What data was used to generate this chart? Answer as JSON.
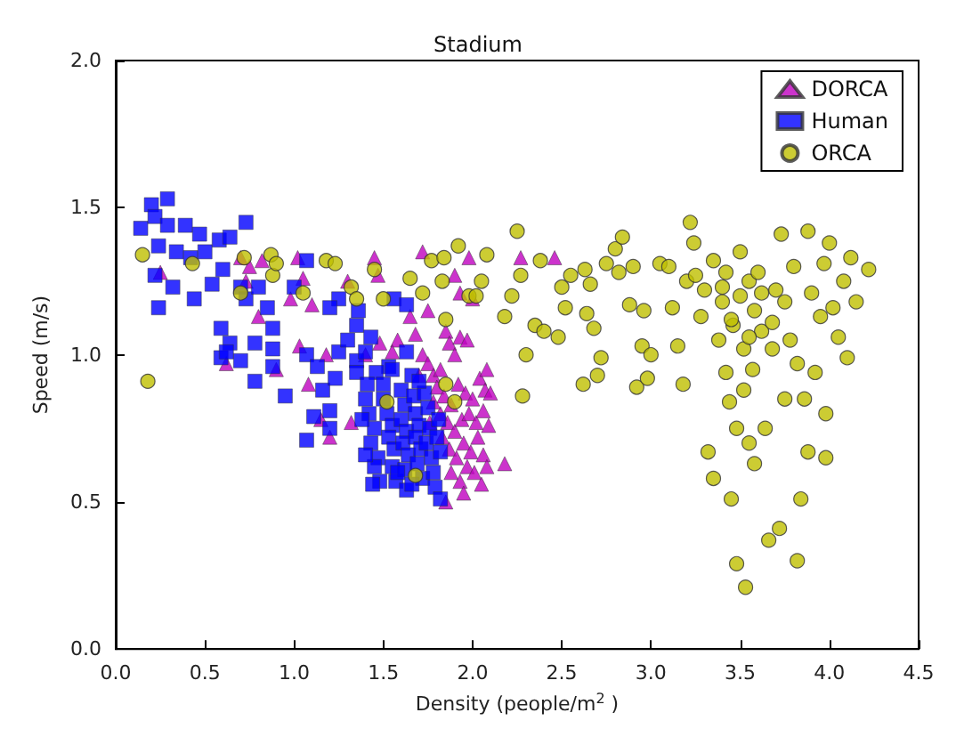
{
  "chart_data": {
    "type": "scatter",
    "title": "Stadium",
    "xlabel": "Density (people/m$^{2}$ )",
    "ylabel": "Speed (m/s)",
    "xlim": [
      0,
      4.5
    ],
    "ylim": [
      0,
      2
    ],
    "xticks": [
      {
        "value": 0,
        "label": "0.0"
      },
      {
        "value": 0.5,
        "label": "0.5"
      },
      {
        "value": 1,
        "label": "1.0"
      },
      {
        "value": 1.5,
        "label": "1.5"
      },
      {
        "value": 2,
        "label": "2.0"
      },
      {
        "value": 2.5,
        "label": "2.5"
      },
      {
        "value": 3,
        "label": "3.0"
      },
      {
        "value": 3.5,
        "label": "3.5"
      },
      {
        "value": 4,
        "label": "4.0"
      },
      {
        "value": 4.5,
        "label": "4.5"
      }
    ],
    "yticks": [
      {
        "value": 0,
        "label": "0.0"
      },
      {
        "value": 0.5,
        "label": "0.5"
      },
      {
        "value": 1,
        "label": "1.0"
      },
      {
        "value": 1.5,
        "label": "1.5"
      },
      {
        "value": 2,
        "label": "2.0"
      }
    ],
    "grid": false,
    "legend": "top right",
    "series": [
      {
        "name": "DORCA",
        "color": "#bf00bf",
        "marker": "triangle",
        "x": [
          0.25,
          0.62,
          0.7,
          0.75,
          0.73,
          0.8,
          0.82,
          0.9,
          0.98,
          1.02,
          1.05,
          1.03,
          1.08,
          1.1,
          1.15,
          1.18,
          1.2,
          1.32,
          1.3,
          1.4,
          1.45,
          1.47,
          1.58,
          1.65,
          1.72,
          1.75,
          1.9,
          1.93,
          1.98,
          2.0,
          2.27,
          2.46,
          1.48,
          1.55,
          1.68,
          1.72,
          1.75,
          1.7,
          1.78,
          1.82,
          1.85,
          1.87,
          1.9,
          1.93,
          1.97,
          1.8,
          1.84,
          1.88,
          1.92,
          1.96,
          2.0,
          2.04,
          2.07,
          1.82,
          1.86,
          1.9,
          1.94,
          1.98,
          2.02,
          2.06,
          2.09,
          1.83,
          1.87,
          1.91,
          1.95,
          1.99,
          2.03,
          2.06,
          2.08,
          1.88,
          1.93,
          1.97,
          2.01,
          2.05,
          1.95,
          1.85,
          2.18,
          2.1,
          2.08,
          1.78,
          1.76
        ],
        "values": [
          1.28,
          0.97,
          1.33,
          1.3,
          1.25,
          1.13,
          1.32,
          0.95,
          1.19,
          1.33,
          1.26,
          1.03,
          0.9,
          1.17,
          0.78,
          1.0,
          0.72,
          0.77,
          1.25,
          1.0,
          1.33,
          1.27,
          1.05,
          1.13,
          1.35,
          1.15,
          1.27,
          1.21,
          1.33,
          1.19,
          1.33,
          1.33,
          1.04,
          1.01,
          1.07,
          1.0,
          0.97,
          0.93,
          0.93,
          0.95,
          1.08,
          1.04,
          1.0,
          1.06,
          1.05,
          0.89,
          0.86,
          0.83,
          0.9,
          0.87,
          0.85,
          0.92,
          0.88,
          0.8,
          0.77,
          0.74,
          0.78,
          0.8,
          0.77,
          0.81,
          0.76,
          0.72,
          0.68,
          0.65,
          0.7,
          0.67,
          0.72,
          0.66,
          0.62,
          0.6,
          0.57,
          0.62,
          0.6,
          0.56,
          0.53,
          0.5,
          0.63,
          0.87,
          0.95,
          0.84,
          0.77
        ]
      },
      {
        "name": "Human",
        "color": "#0000ff",
        "marker": "square",
        "x": [
          0.14,
          0.2,
          0.29,
          0.22,
          0.24,
          0.29,
          0.39,
          0.47,
          0.58,
          0.64,
          0.73,
          0.34,
          0.42,
          0.5,
          0.22,
          0.32,
          0.44,
          0.24,
          0.54,
          0.6,
          0.7,
          0.73,
          0.8,
          0.85,
          0.88,
          0.59,
          0.64,
          0.59,
          0.7,
          0.78,
          0.88,
          0.88,
          0.78,
          0.62,
          1.07,
          1.0,
          0.95,
          1.07,
          1.07,
          1.13,
          1.16,
          1.11,
          1.2,
          1.2,
          1.23,
          1.25,
          1.25,
          1.2,
          1.3,
          1.35,
          1.36,
          1.43,
          1.35,
          1.35,
          1.4,
          1.56,
          1.63,
          1.63,
          1.53,
          1.46,
          1.41,
          1.4,
          1.42,
          1.45,
          1.43,
          1.47,
          1.45,
          1.48,
          1.5,
          1.52,
          1.55,
          1.53,
          1.56,
          1.55,
          1.57,
          1.6,
          1.62,
          1.6,
          1.63,
          1.61,
          1.64,
          1.62,
          1.63,
          1.67,
          1.68,
          1.7,
          1.68,
          1.71,
          1.69,
          1.72,
          1.73,
          1.75,
          1.76,
          1.74,
          1.77,
          1.78,
          1.79,
          1.82,
          1.8,
          1.82,
          1.81,
          1.66,
          1.55,
          1.5,
          1.38,
          1.4,
          1.44,
          1.7,
          1.58,
          1.66
        ],
        "values": [
          1.43,
          1.51,
          1.53,
          1.47,
          1.37,
          1.44,
          1.44,
          1.41,
          1.39,
          1.4,
          1.45,
          1.35,
          1.33,
          1.35,
          1.27,
          1.23,
          1.19,
          1.16,
          1.24,
          1.29,
          1.23,
          1.19,
          1.23,
          1.16,
          1.09,
          1.09,
          1.04,
          0.99,
          0.98,
          1.04,
          1.02,
          0.96,
          0.91,
          1.01,
          1.32,
          1.23,
          0.86,
          0.71,
          1.0,
          0.96,
          0.88,
          0.79,
          0.75,
          0.81,
          0.92,
          1.01,
          1.19,
          1.16,
          1.05,
          1.1,
          1.15,
          1.06,
          0.98,
          0.94,
          1.01,
          1.19,
          1.17,
          1.01,
          0.96,
          0.94,
          0.9,
          0.85,
          0.8,
          0.75,
          0.7,
          0.65,
          0.62,
          0.57,
          0.85,
          0.8,
          0.76,
          0.72,
          0.68,
          0.62,
          0.57,
          0.88,
          0.83,
          0.78,
          0.74,
          0.7,
          0.66,
          0.61,
          0.54,
          0.86,
          0.8,
          0.76,
          0.72,
          0.68,
          0.63,
          0.58,
          0.87,
          0.82,
          0.75,
          0.7,
          0.65,
          0.6,
          0.55,
          0.51,
          0.72,
          0.67,
          0.78,
          0.93,
          0.95,
          0.9,
          0.78,
          0.66,
          0.56,
          0.91,
          0.6,
          0.56
        ]
      },
      {
        "name": "ORCA",
        "color": "#bfbf00",
        "marker": "circle",
        "x": [
          0.15,
          0.18,
          0.43,
          0.7,
          0.72,
          0.87,
          0.88,
          0.9,
          1.05,
          1.18,
          1.23,
          1.32,
          1.35,
          1.5,
          1.45,
          1.52,
          1.65,
          1.68,
          1.72,
          1.77,
          1.83,
          1.84,
          1.85,
          1.85,
          1.9,
          1.92,
          1.98,
          2.02,
          2.05,
          2.08,
          2.18,
          2.22,
          2.25,
          2.27,
          2.28,
          2.3,
          2.35,
          2.38,
          2.4,
          2.48,
          2.5,
          2.52,
          2.55,
          2.63,
          2.62,
          2.64,
          2.66,
          2.68,
          2.7,
          2.72,
          2.75,
          2.8,
          2.82,
          2.84,
          2.88,
          2.9,
          2.92,
          2.95,
          2.96,
          2.98,
          3.0,
          3.05,
          3.1,
          3.12,
          3.15,
          3.18,
          3.2,
          3.22,
          3.24,
          3.28,
          3.3,
          3.32,
          3.35,
          3.35,
          3.38,
          3.4,
          3.42,
          3.42,
          3.44,
          3.45,
          3.46,
          3.48,
          3.48,
          3.5,
          3.5,
          3.52,
          3.52,
          3.53,
          3.55,
          3.55,
          3.57,
          3.58,
          3.58,
          3.6,
          3.62,
          3.64,
          3.66,
          3.68,
          3.7,
          3.72,
          3.73,
          3.75,
          3.75,
          3.78,
          3.8,
          3.82,
          3.82,
          3.84,
          3.86,
          3.88,
          3.88,
          3.9,
          3.92,
          3.95,
          3.97,
          3.98,
          3.98,
          4.0,
          4.02,
          4.05,
          4.08,
          4.1,
          4.12,
          4.15,
          4.22,
          3.25,
          3.45,
          3.55,
          3.62,
          3.68,
          3.4
        ],
        "values": [
          1.34,
          0.91,
          1.31,
          1.21,
          1.33,
          1.34,
          1.27,
          1.31,
          1.21,
          1.32,
          1.31,
          1.23,
          1.19,
          1.19,
          1.29,
          0.84,
          1.26,
          0.59,
          1.21,
          1.32,
          1.25,
          1.33,
          1.12,
          0.9,
          0.84,
          1.37,
          1.2,
          1.2,
          1.25,
          1.34,
          1.13,
          1.2,
          1.42,
          1.27,
          0.86,
          1.0,
          1.1,
          1.32,
          1.08,
          1.06,
          1.23,
          1.16,
          1.27,
          1.29,
          0.9,
          1.14,
          1.24,
          1.09,
          0.93,
          0.99,
          1.31,
          1.36,
          1.28,
          1.4,
          1.17,
          1.3,
          0.89,
          1.03,
          1.15,
          0.92,
          1.0,
          1.31,
          1.3,
          1.16,
          1.03,
          0.9,
          1.25,
          1.45,
          1.38,
          1.13,
          1.22,
          0.67,
          0.58,
          1.32,
          1.05,
          1.18,
          1.28,
          0.94,
          0.84,
          0.51,
          1.1,
          0.75,
          0.29,
          1.35,
          1.2,
          1.02,
          0.88,
          0.21,
          1.25,
          0.7,
          0.95,
          1.15,
          0.63,
          1.28,
          1.08,
          0.75,
          0.37,
          1.02,
          1.22,
          0.41,
          1.41,
          1.18,
          0.85,
          1.05,
          1.3,
          0.97,
          0.3,
          0.51,
          0.85,
          1.42,
          0.67,
          1.21,
          0.94,
          1.13,
          1.31,
          0.8,
          0.65,
          1.38,
          1.16,
          1.06,
          1.25,
          0.99,
          1.33,
          1.18,
          1.29,
          1.27,
          1.12,
          1.06,
          1.21,
          1.11,
          1.23
        ]
      }
    ]
  }
}
